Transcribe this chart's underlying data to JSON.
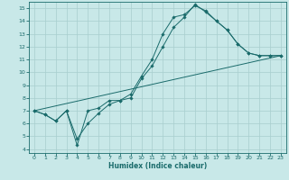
{
  "xlabel": "Humidex (Indice chaleur)",
  "background_color": "#c8e8e8",
  "grid_color": "#a8cece",
  "line_color": "#1a6b6b",
  "xlim": [
    -0.5,
    23.5
  ],
  "ylim": [
    3.7,
    15.5
  ],
  "xticks": [
    0,
    1,
    2,
    3,
    4,
    5,
    6,
    7,
    8,
    9,
    10,
    11,
    12,
    13,
    14,
    15,
    16,
    17,
    18,
    19,
    20,
    21,
    22,
    23
  ],
  "yticks": [
    4,
    5,
    6,
    7,
    8,
    9,
    10,
    11,
    12,
    13,
    14,
    15
  ],
  "series1_x": [
    0,
    1,
    2,
    3,
    4,
    5,
    6,
    7,
    8,
    9,
    10,
    11,
    12,
    13,
    14,
    15,
    16,
    17,
    18,
    19,
    20,
    21,
    22,
    23
  ],
  "series1_y": [
    7.0,
    6.7,
    6.2,
    7.0,
    4.3,
    7.0,
    7.2,
    7.8,
    7.8,
    8.3,
    9.7,
    11.0,
    13.0,
    14.3,
    14.5,
    15.2,
    14.8,
    14.0,
    13.3,
    12.2,
    11.5,
    11.3,
    11.3,
    11.3
  ],
  "series2_x": [
    0,
    1,
    2,
    3,
    4,
    5,
    6,
    7,
    8,
    9,
    10,
    11,
    12,
    13,
    14,
    15,
    16,
    17,
    18,
    19,
    20,
    21,
    22,
    23
  ],
  "series2_y": [
    7.0,
    6.7,
    6.2,
    7.0,
    4.8,
    6.0,
    6.8,
    7.5,
    7.8,
    8.0,
    9.5,
    10.5,
    12.0,
    13.5,
    14.3,
    15.3,
    14.7,
    14.0,
    13.3,
    12.2,
    11.5,
    11.3,
    11.3,
    11.3
  ],
  "series3_x": [
    0,
    23
  ],
  "series3_y": [
    7.0,
    11.3
  ],
  "figsize": [
    3.2,
    2.0
  ],
  "dpi": 100
}
